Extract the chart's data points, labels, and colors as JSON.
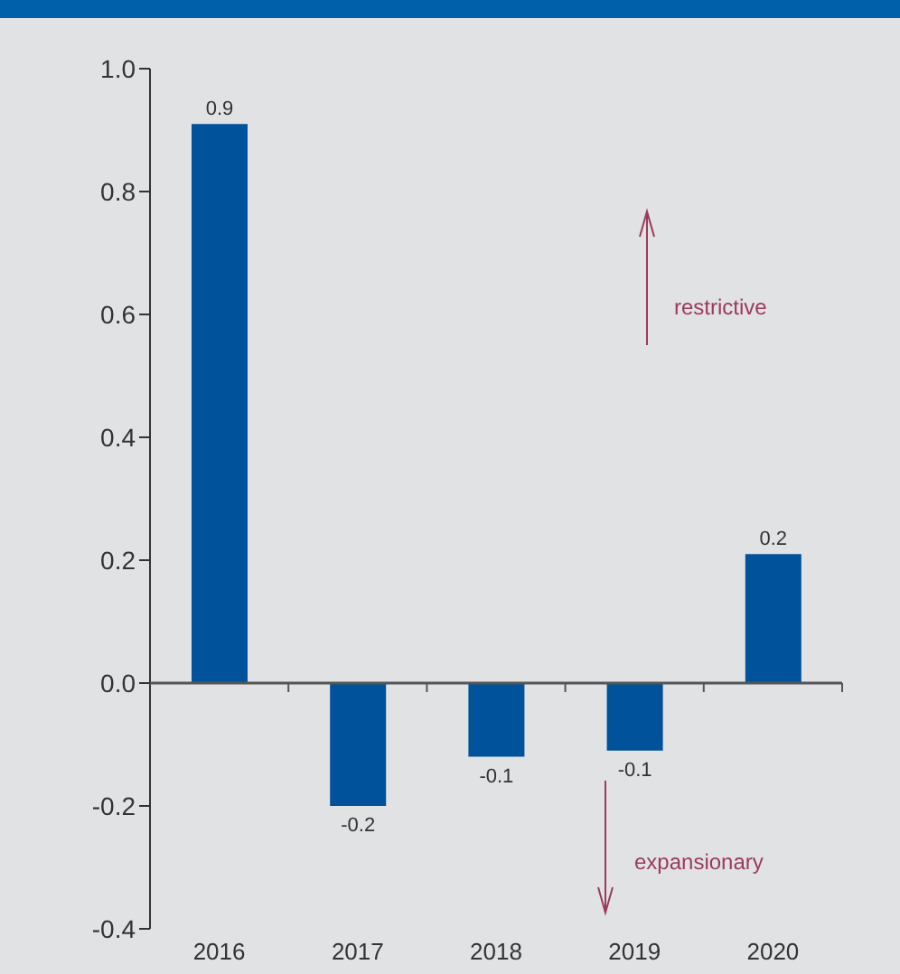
{
  "chart_data": {
    "type": "bar",
    "categories": [
      "2016",
      "2017",
      "2018",
      "2019",
      "2020"
    ],
    "values": [
      0.91,
      -0.2,
      -0.12,
      -0.11,
      0.21
    ],
    "value_labels": [
      "0.9",
      "-0.2",
      "-0.1",
      "-0.1",
      "0.2"
    ],
    "color": "#00529b",
    "ylim": [
      -0.4,
      1.0
    ],
    "yticks": [
      {
        "value": -0.4,
        "label": "-0.4"
      },
      {
        "value": -0.2,
        "label": "-0.2"
      },
      {
        "value": 0,
        "label": "0.0"
      },
      {
        "value": 0.2,
        "label": "0.2"
      },
      {
        "value": 0.4,
        "label": "0.4"
      },
      {
        "value": 0.6,
        "label": "0.6"
      },
      {
        "value": 0.8,
        "label": "0.8"
      },
      {
        "value": 1.0,
        "label": "1.0"
      }
    ],
    "annotations": [
      "restrictive",
      "expansionary"
    ]
  }
}
